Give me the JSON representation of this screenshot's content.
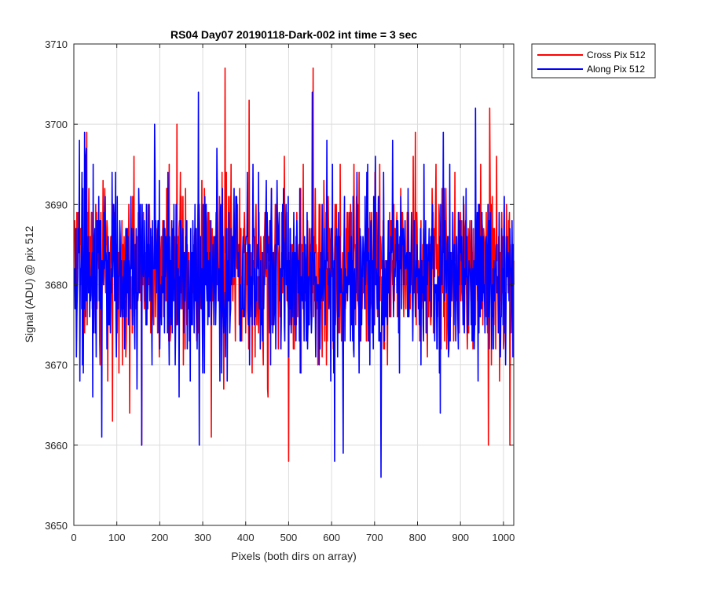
{
  "chart_data": {
    "type": "line",
    "title": "RS04 Day07 20190118-Dark-002 int time = 3 sec",
    "xlabel": "Pixels (both dirs on array)",
    "ylabel": "Signal (ADU) @ pix 512",
    "xlim": [
      0,
      1024
    ],
    "ylim": [
      3650,
      3710
    ],
    "xticks": [
      0,
      100,
      200,
      300,
      400,
      500,
      600,
      700,
      800,
      900,
      1000
    ],
    "yticks": [
      3650,
      3660,
      3670,
      3680,
      3690,
      3700,
      3710
    ],
    "grid": true,
    "legend_position": "outside-top-right",
    "series": [
      {
        "name": "Cross Pix 512",
        "color": "#ff0000",
        "x_start": 1,
        "x_step": 1,
        "mean": 3682,
        "noise_amplitude": 5.5,
        "extremes": [
          {
            "x": 158,
            "y": 3660
          },
          {
            "x": 352,
            "y": 3707
          },
          {
            "x": 500,
            "y": 3658
          },
          {
            "x": 557,
            "y": 3707
          },
          {
            "x": 408,
            "y": 3703
          },
          {
            "x": 968,
            "y": 3702
          },
          {
            "x": 1015,
            "y": 3660
          },
          {
            "x": 965,
            "y": 3660
          },
          {
            "x": 320,
            "y": 3661
          },
          {
            "x": 240,
            "y": 3700
          },
          {
            "x": 90,
            "y": 3663
          },
          {
            "x": 130,
            "y": 3664
          }
        ]
      },
      {
        "name": "Along Pix 512",
        "color": "#0000ff",
        "x_start": 1,
        "x_step": 1,
        "mean": 3681,
        "noise_amplitude": 5.5,
        "extremes": [
          {
            "x": 715,
            "y": 3656
          },
          {
            "x": 292,
            "y": 3660
          },
          {
            "x": 555,
            "y": 3704
          },
          {
            "x": 290,
            "y": 3704
          },
          {
            "x": 935,
            "y": 3702
          },
          {
            "x": 607,
            "y": 3658
          },
          {
            "x": 627,
            "y": 3659
          },
          {
            "x": 158,
            "y": 3660
          },
          {
            "x": 65,
            "y": 3661
          },
          {
            "x": 188,
            "y": 3700
          },
          {
            "x": 25,
            "y": 3699
          },
          {
            "x": 860,
            "y": 3699
          }
        ]
      }
    ]
  }
}
